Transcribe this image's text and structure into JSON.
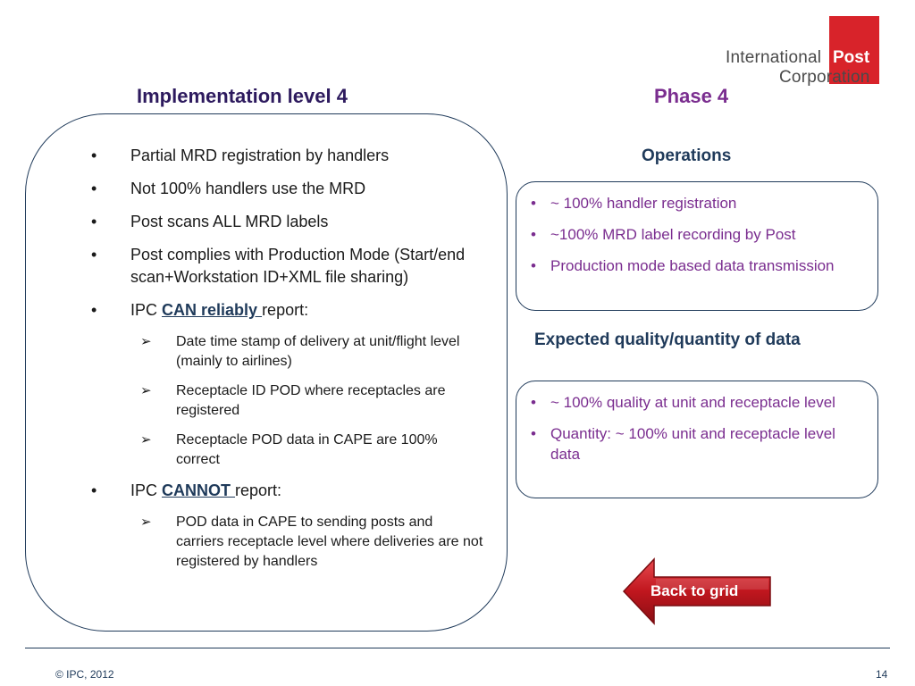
{
  "logo": {
    "line1": "International",
    "line2": "Post",
    "line3": "Corporation"
  },
  "titles": {
    "left": "Implementation level 4",
    "right": "Phase 4"
  },
  "left_list": {
    "item1": "Partial MRD registration by handlers",
    "item2": "Not 100% handlers use the MRD",
    "item3": "Post scans ALL MRD labels",
    "item4": "Post complies with Production Mode (Start/end scan+Workstation ID+XML file sharing)",
    "item5_prefix": "IPC ",
    "item5_emph": "CAN reliably ",
    "item5_suffix": "report:",
    "can": [
      "Date time stamp of delivery at unit/flight level (mainly to airlines)",
      "Receptacle ID POD where receptacles are registered",
      "Receptacle POD data in CAPE are 100% correct"
    ],
    "item6_prefix": "IPC ",
    "item6_emph": "CANNOT ",
    "item6_suffix": "report:",
    "cannot": [
      "POD data in CAPE to sending posts and carriers receptacle level where deliveries are not registered by handlers"
    ]
  },
  "operations": {
    "heading": "Operations",
    "items": [
      "~ 100% handler registration",
      "~100% MRD label recording by Post",
      "Production mode based data transmission"
    ]
  },
  "expected": {
    "heading": "Expected quality/quantity of data",
    "items": [
      "~ 100% quality at unit and receptacle level",
      "Quantity: ~ 100% unit and receptacle level data"
    ]
  },
  "back_button": {
    "label": "Back to grid"
  },
  "footer": {
    "copyright": "© IPC, 2012",
    "page_number": "14"
  },
  "glyphs": {
    "bullet": "•",
    "arrow": "➢"
  },
  "colors": {
    "logo_red": "#d8232a",
    "title_left": "#2d1a5e",
    "purple": "#7a2d8f",
    "navy": "#1f3a5a",
    "button_red": "#c0161e"
  }
}
